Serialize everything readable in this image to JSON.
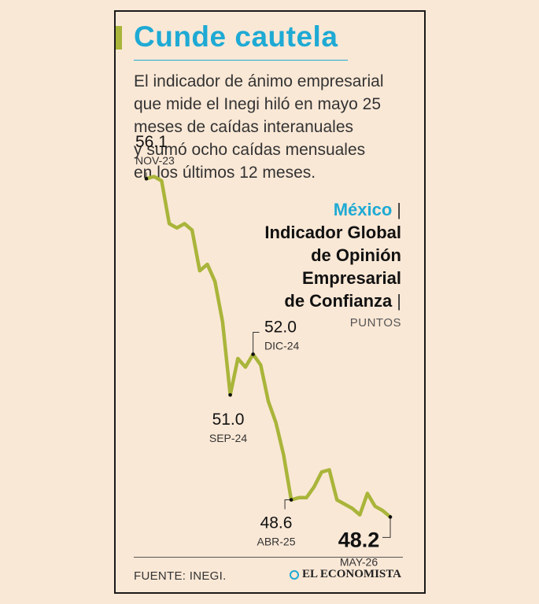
{
  "header": {
    "title": "Cunde cautela",
    "subtitle_lines": [
      "El indicador de ánimo empresarial",
      "que mide el Inegi hiló en mayo 25",
      "meses de caídas interanuales",
      "y sumó ocho caídas mensuales",
      "en los últimos 12 meses."
    ]
  },
  "chart_title": {
    "country": "México",
    "lines": [
      "Indicador Global",
      "de Opinión",
      "Empresarial",
      "de Confianza"
    ],
    "separator": "|",
    "units": "PUNTOS"
  },
  "chart_data": {
    "type": "line",
    "series": [
      {
        "values": [
          56.1,
          56.15,
          56.05,
          55.05,
          54.95,
          55.05,
          54.9,
          53.95,
          54.1,
          53.7,
          52.75,
          51.05,
          51.9,
          51.7,
          52.0,
          51.75,
          50.9,
          50.4,
          49.65,
          48.6,
          48.65,
          48.65,
          48.9,
          49.25,
          49.3,
          48.6,
          48.5,
          48.4,
          48.25,
          48.75,
          48.45,
          48.35,
          48.2
        ]
      }
    ],
    "ylim": [
      47.6,
      56.6
    ],
    "grid": false,
    "legend": "none",
    "line_color": "#a9b53a",
    "annotations": [
      {
        "index": 0,
        "value": "56.1",
        "date": "NOV-23",
        "bold": false
      },
      {
        "index": 14,
        "value": "52.0",
        "date": "DIC-24",
        "bold": false
      },
      {
        "index": 11,
        "value": "51.0",
        "date": "SEP-24",
        "bold": false
      },
      {
        "index": 19,
        "value": "48.6",
        "date": "ABR-25",
        "bold": false
      },
      {
        "index": 32,
        "value": "48.2",
        "date": "MAY-26",
        "bold": true
      }
    ]
  },
  "footer": {
    "source": "FUENTE: INEGI.",
    "brand": "EL ECONOMISTA"
  },
  "colors": {
    "accent": "#1eaad4",
    "line": "#a9b53a",
    "background": "#fae8d6"
  }
}
